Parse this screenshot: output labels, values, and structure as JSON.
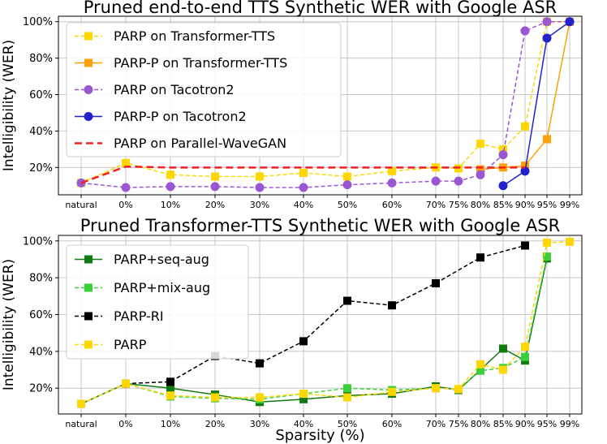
{
  "chart_data": [
    {
      "type": "line",
      "title": "Pruned end-to-end TTS Synthetic WER with Google ASR",
      "ylabel": "Intelligibility (WER)",
      "xlabel": "",
      "categories": [
        "natural",
        "0%",
        "10%",
        "20%",
        "30%",
        "40%",
        "50%",
        "60%",
        "70%",
        "75%",
        "80%",
        "85%",
        "90%",
        "95%",
        "99%"
      ],
      "y_ticks": [
        "20%",
        "40%",
        "60%",
        "80%",
        "100%"
      ],
      "ylim": [
        5,
        103
      ],
      "grid": true,
      "legend": "upper-left",
      "series": [
        {
          "name": "PARP on Transformer-TTS",
          "color": "#ffd700",
          "style": "dashed",
          "marker": "square",
          "x": [
            0,
            1,
            2,
            3,
            4,
            5,
            6,
            7,
            8,
            9,
            10,
            11,
            12,
            13,
            14
          ],
          "values": [
            11.5,
            22.5,
            16,
            15,
            15,
            17,
            15,
            18,
            20,
            19.5,
            33,
            30,
            42.5,
            100,
            100
          ]
        },
        {
          "name": "PARP-P on Transformer-TTS",
          "color": "#ff9f0a",
          "style": "solid",
          "marker": "square",
          "x": [
            10,
            11,
            12,
            13,
            14
          ],
          "values": [
            19,
            20,
            21,
            35.5,
            100
          ]
        },
        {
          "name": "PARP on Tacotron2",
          "color": "#9b57d3",
          "style": "dashed",
          "marker": "circle",
          "x": [
            0,
            1,
            2,
            3,
            4,
            5,
            6,
            7,
            8,
            9,
            10,
            11,
            12,
            13,
            14
          ],
          "values": [
            11.5,
            9,
            9.5,
            9.5,
            9,
            9,
            10.5,
            11.5,
            12.5,
            12.5,
            16,
            27,
            95,
            100,
            100
          ]
        },
        {
          "name": "PARP-P on Tacotron2",
          "color": "#2222cc",
          "style": "solid",
          "marker": "circle",
          "x": [
            11,
            12,
            13,
            14
          ],
          "values": [
            10,
            18,
            91,
            100
          ]
        },
        {
          "name": "PARP on Parallel-WaveGAN",
          "color": "#ee2222",
          "style": "dashed-thick",
          "marker": "none",
          "x": [
            0,
            1,
            2,
            3,
            4,
            5,
            6,
            7,
            8,
            9,
            10,
            11,
            12
          ],
          "values": [
            11.5,
            20.5,
            20,
            20,
            20,
            20,
            20,
            20,
            20,
            20,
            20,
            20,
            20
          ]
        }
      ]
    },
    {
      "type": "line",
      "title": "Pruned Transformer-TTS Synthetic WER with Google ASR",
      "ylabel": "Intelligibility (WER)",
      "xlabel": "Sparsity (%)",
      "categories": [
        "natural",
        "0%",
        "10%",
        "20%",
        "30%",
        "40%",
        "50%",
        "60%",
        "70%",
        "75%",
        "80%",
        "85%",
        "90%",
        "95%",
        "99%"
      ],
      "y_ticks": [
        "20%",
        "40%",
        "60%",
        "80%",
        "100%"
      ],
      "ylim": [
        6,
        103
      ],
      "grid": true,
      "legend": "upper-left",
      "series": [
        {
          "name": "PARP+seq-aug",
          "color": "#137a13",
          "style": "solid",
          "marker": "square",
          "x": [
            0,
            1,
            2,
            3,
            4,
            5,
            6,
            7,
            8,
            9,
            10,
            11,
            12,
            13
          ],
          "values": [
            11.5,
            22.5,
            20,
            16.5,
            12.5,
            14,
            16,
            17,
            21,
            19,
            30,
            41.5,
            35,
            90.5
          ]
        },
        {
          "name": "PARP+mix-aug",
          "color": "#3ccf3c",
          "style": "dashed",
          "marker": "square",
          "x": [
            0,
            1,
            2,
            3,
            4,
            5,
            6,
            7,
            8,
            9,
            10,
            11,
            12,
            13
          ],
          "values": [
            11.5,
            22.5,
            15.5,
            14.5,
            14,
            17,
            20,
            19,
            20,
            19.5,
            29.5,
            31,
            37,
            91.5
          ]
        },
        {
          "name": "PARP-RI",
          "color": "#000000",
          "style": "dashed",
          "marker": "square",
          "x": [
            1,
            2,
            3,
            4,
            5,
            6,
            7,
            8,
            10,
            12
          ],
          "values": [
            22.5,
            23.5,
            37.5,
            33.5,
            45.5,
            67.5,
            65,
            77,
            91,
            97.5
          ]
        },
        {
          "name": "PARP",
          "color": "#ffd700",
          "style": "dashed",
          "marker": "square",
          "x": [
            0,
            1,
            2,
            3,
            4,
            5,
            6,
            7,
            8,
            9,
            10,
            11,
            12,
            13,
            14
          ],
          "values": [
            11.5,
            22.5,
            16,
            15,
            15,
            17,
            15,
            18,
            20,
            19.5,
            33,
            30,
            42.5,
            99,
            99.5
          ]
        }
      ]
    }
  ]
}
